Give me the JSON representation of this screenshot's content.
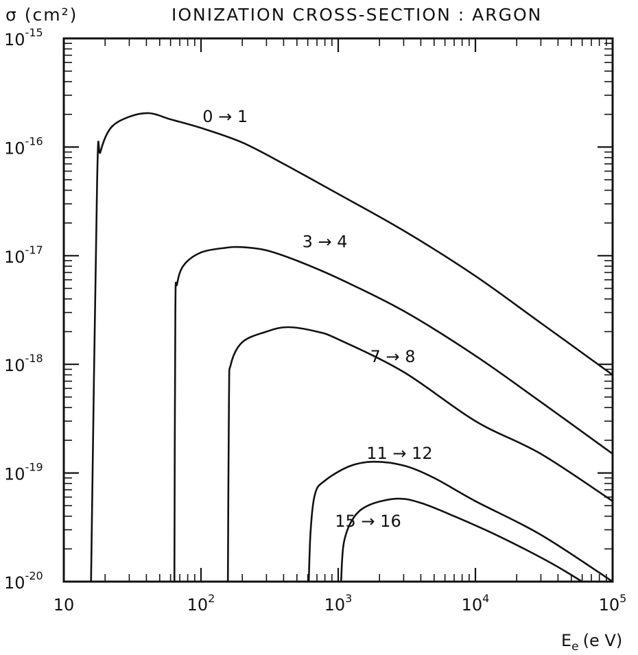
{
  "chart_data": {
    "type": "line",
    "title": "IONIZATION CROSS-SECTION : ARGON",
    "ylabel": "σ (cm²)",
    "xlabel": "E",
    "xlabel_subscript": "e",
    "xlabel_unit": "(e V)",
    "x_scale": "log",
    "y_scale": "log",
    "xlim": [
      10,
      100000
    ],
    "ylim": [
      1e-20,
      1e-15
    ],
    "x_ticks": [
      {
        "value": 10,
        "label": "10",
        "sup": ""
      },
      {
        "value": 100,
        "label": "10",
        "sup": "2"
      },
      {
        "value": 1000,
        "label": "10",
        "sup": "3"
      },
      {
        "value": 10000,
        "label": "10",
        "sup": "4"
      },
      {
        "value": 100000,
        "label": "10",
        "sup": "5"
      }
    ],
    "y_ticks": [
      {
        "value": 1e-15,
        "label": "10",
        "sup": "-15"
      },
      {
        "value": 1e-16,
        "label": "10",
        "sup": "-16"
      },
      {
        "value": 1e-17,
        "label": "10",
        "sup": "-17"
      },
      {
        "value": 1e-18,
        "label": "10",
        "sup": "-18"
      },
      {
        "value": 1e-19,
        "label": "10",
        "sup": "-19"
      },
      {
        "value": 1e-20,
        "label": "10",
        "sup": "-20"
      }
    ],
    "grid": false,
    "series": [
      {
        "name": "0 → 1",
        "label_at": [
          150,
          1.7e-16
        ],
        "points": [
          [
            15.8,
            1e-20
          ],
          [
            17.5,
            5e-17
          ],
          [
            18.5,
            9e-17
          ],
          [
            22,
            1.5e-16
          ],
          [
            30,
            1.9e-16
          ],
          [
            42,
            2.05e-16
          ],
          [
            60,
            1.8e-16
          ],
          [
            100,
            1.5e-16
          ],
          [
            200,
            1.1e-16
          ],
          [
            400,
            7e-17
          ],
          [
            1000,
            3.7e-17
          ],
          [
            3000,
            1.7e-17
          ],
          [
            10000,
            6.5e-18
          ],
          [
            30000,
            2.4e-18
          ],
          [
            100000,
            8e-19
          ]
        ]
      },
      {
        "name": "3 → 4",
        "label_at": [
          800,
          1.2e-17
        ],
        "points": [
          [
            64,
            1e-20
          ],
          [
            65,
            3e-18
          ],
          [
            67,
            5.5e-18
          ],
          [
            75,
            8.2e-18
          ],
          [
            100,
            1.07e-17
          ],
          [
            150,
            1.18e-17
          ],
          [
            200,
            1.2e-17
          ],
          [
            300,
            1.12e-17
          ],
          [
            500,
            9e-18
          ],
          [
            1000,
            6.2e-18
          ],
          [
            3000,
            3.1e-18
          ],
          [
            10000,
            1.2e-18
          ],
          [
            30000,
            4.5e-19
          ],
          [
            100000,
            1.5e-19
          ]
        ]
      },
      {
        "name": "7 → 8",
        "label_at": [
          2500,
          1.05e-18
        ],
        "points": [
          [
            157,
            1e-20
          ],
          [
            160,
            5e-19
          ],
          [
            165,
            1e-18
          ],
          [
            200,
            1.6e-18
          ],
          [
            300,
            2e-18
          ],
          [
            430,
            2.2e-18
          ],
          [
            700,
            2e-18
          ],
          [
            1000,
            1.7e-18
          ],
          [
            3000,
            8.5e-19
          ],
          [
            10000,
            3e-19
          ],
          [
            30000,
            1.5e-19
          ],
          [
            100000,
            5.5e-20
          ]
        ]
      },
      {
        "name": "11 → 12",
        "label_at": [
          2800,
          1.35e-19
        ],
        "points": [
          [
            610,
            1e-20
          ],
          [
            630,
            3e-20
          ],
          [
            680,
            6.5e-20
          ],
          [
            800,
            8.5e-20
          ],
          [
            1200,
            1.15e-19
          ],
          [
            1800,
            1.27e-19
          ],
          [
            3000,
            1.17e-19
          ],
          [
            5000,
            9e-20
          ],
          [
            10000,
            5.5e-20
          ],
          [
            30000,
            2.7e-20
          ],
          [
            100000,
            1e-20
          ]
        ]
      },
      {
        "name": "15 → 16",
        "label_at": [
          1650,
          3.2e-20
        ],
        "points": [
          [
            1050,
            1e-20
          ],
          [
            1100,
            2.3e-20
          ],
          [
            1300,
            3.9e-20
          ],
          [
            1700,
            5.1e-20
          ],
          [
            2700,
            5.8e-20
          ],
          [
            4000,
            5.3e-20
          ],
          [
            7000,
            4e-20
          ],
          [
            15000,
            2.6e-20
          ],
          [
            35000,
            1.5e-20
          ],
          [
            60000,
            1e-20
          ]
        ]
      }
    ]
  }
}
